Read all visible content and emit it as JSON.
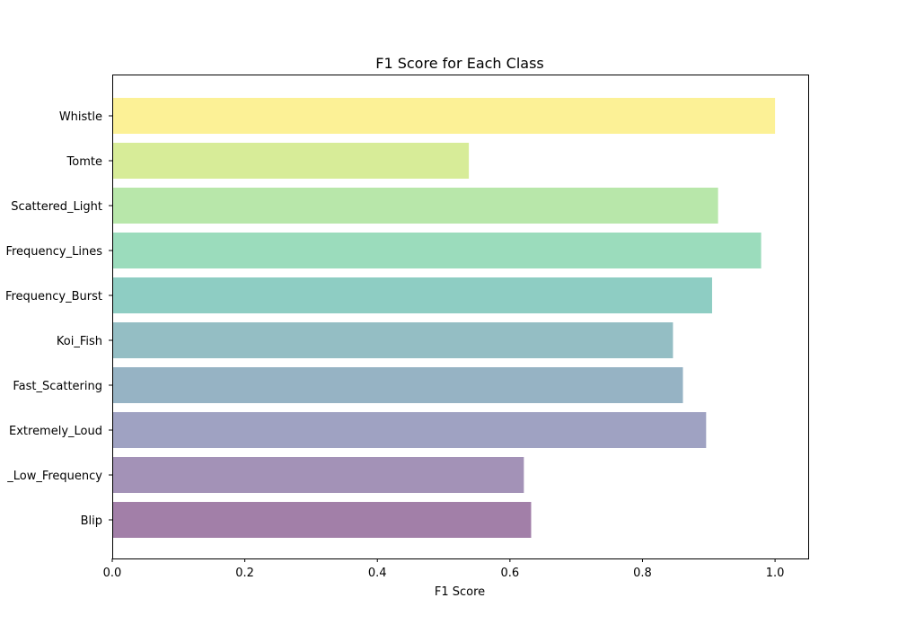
{
  "chart_data": {
    "type": "bar",
    "orientation": "horizontal",
    "title": "F1 Score for Each Class",
    "xlabel": "F1 Score",
    "ylabel": "",
    "xlim": [
      0.0,
      1.05
    ],
    "xticks": [
      "0.0",
      "0.2",
      "0.4",
      "0.6",
      "0.8",
      "1.0"
    ],
    "xtick_values": [
      0.0,
      0.2,
      0.4,
      0.6,
      0.8,
      1.0
    ],
    "categories": [
      "Blip",
      "Repeating_Low_Frequency",
      "Extremely_Loud",
      "Fast_Scattering",
      "Koi_Fish",
      "Low_Frequency_Burst",
      "Low_Frequency_Lines",
      "Scattered_Light",
      "Tomte",
      "Whistle"
    ],
    "category_labels": [
      "Blip",
      "_Low_Frequency",
      "Extremely_Loud",
      "Fast_Scattering",
      "Koi_Fish",
      "Frequency_Burst",
      "Frequency_Lines",
      "Scattered_Light",
      "Tomte",
      "Whistle"
    ],
    "values": [
      0.632,
      0.621,
      0.896,
      0.861,
      0.846,
      0.905,
      0.979,
      0.914,
      0.538,
      1.0
    ],
    "colors": [
      "#a27fa8",
      "#a392b7",
      "#9fa2c2",
      "#96b3c4",
      "#94bec4",
      "#8ecdc3",
      "#9bdcbc",
      "#b8e7aa",
      "#d7ec98",
      "#fcf196"
    ],
    "grid": false,
    "legend": "none"
  }
}
